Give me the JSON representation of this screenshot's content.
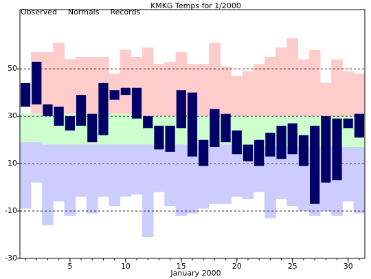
{
  "chart_data": {
    "type": "range_bar",
    "title": "KMKG Temps for 1/2000",
    "x_label": "January 2000",
    "x": [
      1,
      2,
      3,
      4,
      5,
      6,
      7,
      8,
      9,
      10,
      11,
      12,
      13,
      14,
      15,
      16,
      17,
      18,
      19,
      20,
      21,
      22,
      23,
      24,
      25,
      26,
      27,
      28,
      29,
      30,
      31
    ],
    "xlim": [
      0.5,
      31.5
    ],
    "xticks": [
      5,
      10,
      15,
      20,
      25,
      30
    ],
    "ylim": [
      -30,
      75
    ],
    "yticks": [
      -30,
      -10,
      10,
      30,
      50
    ],
    "grid": true,
    "series": [
      {
        "name": "Observed",
        "color": "#000066",
        "legend_color": "#000066",
        "high": [
          44,
          53,
          35,
          34,
          30,
          39,
          31,
          44,
          41,
          42,
          42,
          30,
          26,
          26,
          41,
          40,
          20,
          33,
          31,
          24,
          18,
          20,
          23,
          26,
          27,
          22,
          26,
          30,
          29,
          29,
          31
        ],
        "low": [
          34,
          35,
          30,
          26,
          24,
          26,
          19,
          22,
          37,
          39,
          29,
          25,
          16,
          15,
          25,
          13,
          9,
          17,
          19,
          14,
          11,
          9,
          13,
          12,
          14,
          9,
          -7,
          2,
          3,
          25,
          21
        ]
      },
      {
        "name": "Normals",
        "color": "#ccffcc",
        "legend_color": "#008000",
        "high": [
          31,
          31,
          31,
          31,
          31,
          31,
          31,
          31,
          31,
          31,
          30,
          30,
          30,
          30,
          30,
          30,
          30,
          30,
          30,
          30,
          30,
          30,
          30,
          30,
          30,
          30,
          30,
          30,
          30,
          30,
          30
        ],
        "low": [
          19,
          19,
          18,
          18,
          18,
          18,
          18,
          18,
          18,
          18,
          18,
          18,
          18,
          18,
          18,
          18,
          18,
          18,
          18,
          18,
          17,
          17,
          17,
          17,
          17,
          17,
          17,
          17,
          17,
          17,
          17
        ]
      },
      {
        "name": "Records",
        "color": "#ffcccc",
        "low_color": "#ccccff",
        "legend_color": "#ff99bb",
        "high": [
          null,
          57,
          57,
          61,
          54,
          55,
          55,
          55,
          48,
          58,
          55,
          59,
          52,
          53,
          57,
          52,
          52,
          61,
          51,
          47,
          49,
          52,
          55,
          59,
          63,
          54,
          58,
          44,
          54,
          49,
          48
        ],
        "low": [
          -9,
          2,
          -16,
          -6,
          -12,
          -4,
          -11,
          -4,
          -8,
          -4,
          -3,
          -21,
          -2,
          -8,
          -12,
          -11,
          -9,
          -7,
          -7,
          -4,
          -5,
          -2,
          -13,
          -5,
          -8,
          -10,
          -12,
          -10,
          -12,
          -6,
          -11
        ]
      }
    ]
  }
}
